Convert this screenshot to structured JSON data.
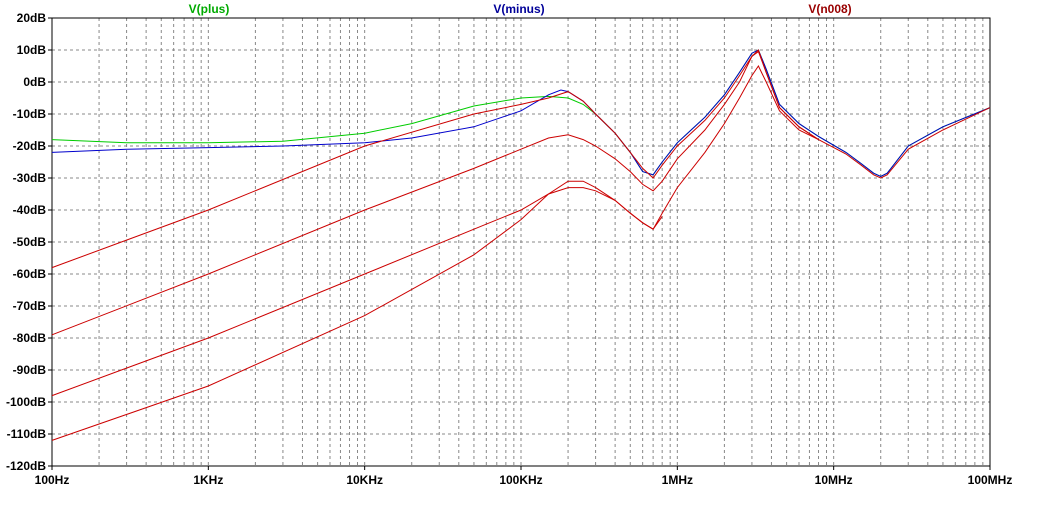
{
  "chart_data": {
    "type": "line",
    "x_scale": "log",
    "xlim": [
      100,
      100000000
    ],
    "ylim": [
      -120,
      20
    ],
    "grid": true,
    "legend_placement": "top",
    "x_ticks": [
      "100Hz",
      "1KHz",
      "10KHz",
      "100KHz",
      "1MHz",
      "10MHz",
      "100MHz"
    ],
    "y_ticks": [
      "20dB",
      "10dB",
      "0dB",
      "-10dB",
      "-20dB",
      "-30dB",
      "-40dB",
      "-50dB",
      "-60dB",
      "-70dB",
      "-80dB",
      "-90dB",
      "-100dB",
      "-110dB",
      "-120dB"
    ],
    "legend": [
      {
        "name": "V(plus)",
        "color": "#00aa00"
      },
      {
        "name": "V(minus)",
        "color": "#000099"
      },
      {
        "name": "V(n008)",
        "color": "#990000"
      }
    ],
    "series": [
      {
        "name": "V(plus)",
        "color": "#00cc00",
        "x": [
          100,
          300,
          1000,
          3000,
          10000,
          20000,
          50000,
          100000,
          150000,
          200000,
          250000,
          300000,
          400000,
          500000,
          600000,
          700000,
          800000,
          1000000,
          1500000,
          2000000,
          2500000,
          3000000,
          3300000,
          3700000,
          4500000,
          6000000,
          8000000,
          12000000,
          15000000,
          18000000,
          20000000,
          22000000,
          30000000,
          50000000,
          100000000
        ],
        "y": [
          -18,
          -19,
          -19,
          -18.5,
          -16,
          -13,
          -7.5,
          -5,
          -4.5,
          -5,
          -7,
          -10,
          -16,
          -22,
          -28,
          -29,
          -25,
          -19,
          -11,
          -4,
          3,
          9,
          10,
          4,
          -7,
          -13,
          -17,
          -22,
          -25.5,
          -28.5,
          -29.5,
          -28.5,
          -20,
          -14,
          -8
        ]
      },
      {
        "name": "V(minus)",
        "color": "#0000cc",
        "x": [
          100,
          300,
          1000,
          3000,
          10000,
          20000,
          50000,
          100000,
          150000,
          180000,
          200000,
          250000,
          300000,
          400000,
          500000,
          600000,
          700000,
          800000,
          1000000,
          1500000,
          2000000,
          2500000,
          3000000,
          3300000,
          3700000,
          4500000,
          6000000,
          8000000,
          12000000,
          15000000,
          18000000,
          20000000,
          22000000,
          30000000,
          50000000,
          100000000
        ],
        "y": [
          -22,
          -21,
          -20.5,
          -20,
          -19,
          -17.5,
          -14,
          -9,
          -4,
          -2.5,
          -3,
          -6,
          -10,
          -16,
          -22,
          -28,
          -29,
          -25,
          -19,
          -11,
          -4,
          3,
          9,
          10,
          4,
          -7,
          -13,
          -17,
          -22,
          -25.5,
          -28.5,
          -29.5,
          -28.5,
          -20,
          -14,
          -8
        ]
      },
      {
        "name": "V(n008) #1",
        "color": "#cc0000",
        "x": [
          100,
          1000,
          10000,
          50000,
          100000,
          150000,
          200000,
          250000,
          300000,
          400000,
          500000,
          600000,
          700000,
          800000,
          1000000,
          1500000,
          2000000,
          2500000,
          3000000,
          3300000,
          3700000,
          4500000,
          6000000,
          8000000,
          12000000,
          15000000,
          18000000,
          20000000,
          22000000,
          30000000,
          50000000,
          100000000
        ],
        "y": [
          -58,
          -40,
          -20,
          -10,
          -7,
          -5,
          -3,
          -6,
          -10,
          -16,
          -22,
          -27,
          -30,
          -26,
          -20,
          -12,
          -5,
          2,
          8,
          9.5,
          3,
          -8,
          -14,
          -18,
          -22.5,
          -26,
          -29,
          -30,
          -29,
          -21,
          -15,
          -8
        ]
      },
      {
        "name": "V(n008) #2",
        "color": "#cc0000",
        "x": [
          100,
          1000,
          10000,
          50000,
          100000,
          150000,
          200000,
          250000,
          300000,
          400000,
          500000,
          600000,
          700000,
          800000,
          1000000,
          1500000,
          2000000,
          2500000,
          3000000,
          3300000,
          3700000,
          4500000,
          6000000,
          8000000
        ],
        "y": [
          -79,
          -60,
          -40,
          -27,
          -21,
          -17.5,
          -16.5,
          -18,
          -20,
          -24,
          -28,
          -32,
          -34,
          -31,
          -24,
          -15,
          -7,
          0,
          8,
          10,
          3,
          -8,
          -14,
          -18
        ]
      },
      {
        "name": "V(n008) #3",
        "color": "#cc0000",
        "x": [
          100,
          1000,
          10000,
          50000,
          100000,
          150000,
          200000,
          250000,
          300000,
          400000,
          500000,
          600000,
          700000,
          800000,
          1000000,
          1500000,
          2000000,
          2500000,
          3000000,
          3300000,
          3700000,
          4500000,
          6000000,
          8000000
        ],
        "y": [
          -98,
          -80,
          -60,
          -46,
          -40,
          -35,
          -33,
          -33,
          -34,
          -37,
          -41,
          -44,
          -46,
          -41,
          -33,
          -22,
          -13,
          -5,
          2,
          5,
          0,
          -9,
          -15,
          -18
        ]
      },
      {
        "name": "V(n008) #4",
        "color": "#cc0000",
        "x": [
          100,
          1000,
          10000,
          50000,
          100000,
          150000,
          200000,
          250000,
          300000,
          400000,
          500000,
          600000,
          700000,
          800000
        ],
        "y": [
          -112,
          -95,
          -73,
          -54,
          -43,
          -35,
          -31,
          -31,
          -33,
          -37,
          -41,
          -44,
          -46,
          -42
        ]
      }
    ]
  }
}
